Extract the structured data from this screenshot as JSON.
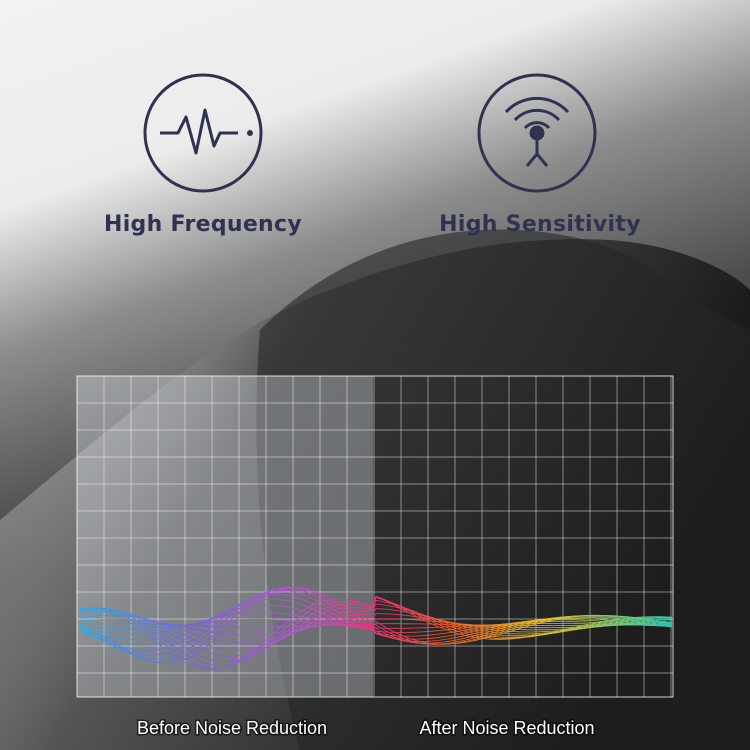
{
  "features": [
    {
      "label": "High Frequency"
    },
    {
      "label": "High Sensitivity"
    }
  ],
  "comparison": {
    "before": "Before Noise Reduction",
    "after": "After Noise Reduction"
  }
}
